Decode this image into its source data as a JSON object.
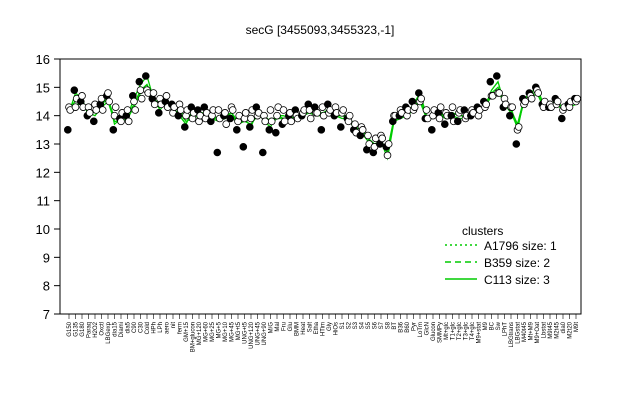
{
  "chart_data": {
    "type": "line",
    "title": "secG [3455093,3455323,-1]",
    "xlabel": "",
    "ylabel": "",
    "ylim": [
      7,
      16
    ],
    "yticks": [
      7,
      8,
      9,
      10,
      11,
      12,
      13,
      14,
      15,
      16
    ],
    "categories": [
      "G150",
      "G135",
      "G180",
      "Paraq",
      "H2O2",
      "Oxctl",
      "LBGexp",
      "dia15",
      "Diami",
      "dia5",
      "C90",
      "C30",
      "Cold",
      "HPh",
      "LPh",
      "aero",
      "nit",
      "ferm",
      "GM+15",
      "BM+glucon",
      "MG+120",
      "MG+60",
      "MG+25",
      "MG+5",
      "MG+10",
      "MG+45",
      "MG+t5",
      "UNG+t5",
      "UNG+120",
      "UNG+45",
      "UNG+90",
      "M/G",
      "Mal",
      "Fru",
      "Glu",
      "BMM",
      "Heat",
      "Salt",
      "Etha",
      "HTim",
      "Gly",
      "HiOs",
      "S1",
      "S2",
      "S3",
      "S4",
      "S5",
      "S6",
      "S7",
      "S8",
      "BT",
      "B36",
      "B60",
      "Pyr",
      "LoTm",
      "GlcN",
      "Glucon",
      "SMMPy",
      "Mt+glc",
      "T1+glc",
      "T2+glc",
      "T3+glc",
      "T4+glc",
      "M9+stat",
      "M9",
      "BC",
      "Sw",
      "LPhT",
      "LBGtrans",
      "LBGstat",
      "M40t45",
      "Mt+M9",
      "M9+Oat",
      "Lbstat",
      "M9t45",
      "M2t45",
      "dia0",
      "M2t20",
      "M9t"
    ],
    "series": [
      {
        "values": [
          14.3,
          14.5,
          14.5,
          14.2,
          14.1,
          14.4,
          14.6,
          13.9,
          13.9,
          14.0,
          14.4,
          14.9,
          15.1,
          14.6,
          14.4,
          14.5,
          14.3,
          14.2,
          13.9,
          14.0,
          14.1,
          14.1,
          14.0,
          13.9,
          14.0,
          14.1,
          13.8,
          13.9,
          13.8,
          14.1,
          14.0,
          13.8,
          14.0,
          14.0,
          13.9,
          14.0,
          14.1,
          14.2,
          14.1,
          14.1,
          14.2,
          14.1,
          14.0,
          14.0,
          13.6,
          13.5,
          13.2,
          13.0,
          13.1,
          12.8,
          13.9,
          14.0,
          14.1,
          14.3,
          14.6,
          14.0,
          14.0,
          14.1,
          14.0,
          14.1,
          14.0,
          14.0,
          14.1,
          14.2,
          14.4,
          14.8,
          15.0,
          14.5,
          14.2,
          13.7,
          14.6,
          14.7,
          14.9,
          14.4,
          14.4,
          14.5,
          14.3,
          14.4,
          14.5
        ]
      },
      {
        "values": [
          14.2,
          14.4,
          14.4,
          14.1,
          14.0,
          14.3,
          14.5,
          13.8,
          13.8,
          13.9,
          14.3,
          14.8,
          15.0,
          14.5,
          14.3,
          14.4,
          14.2,
          14.1,
          13.8,
          13.9,
          14.0,
          14.0,
          13.9,
          13.8,
          13.9,
          14.0,
          13.7,
          13.8,
          13.7,
          14.0,
          13.9,
          13.7,
          13.9,
          13.9,
          13.8,
          13.9,
          14.0,
          14.1,
          14.0,
          14.0,
          14.1,
          14.0,
          13.9,
          13.9,
          13.5,
          13.4,
          13.1,
          12.9,
          13.0,
          12.7,
          13.8,
          13.9,
          14.0,
          14.2,
          14.5,
          13.9,
          13.9,
          14.0,
          13.9,
          14.0,
          13.9,
          13.9,
          14.0,
          14.1,
          14.3,
          14.7,
          14.9,
          14.4,
          14.1,
          13.6,
          14.5,
          14.6,
          14.8,
          14.3,
          14.3,
          14.4,
          14.2,
          14.3,
          14.4
        ]
      },
      {
        "values": [
          14.1,
          14.8,
          14.6,
          14.0,
          14.2,
          14.4,
          14.7,
          13.7,
          13.9,
          14.0,
          14.6,
          15.1,
          15.4,
          14.6,
          14.2,
          14.5,
          14.3,
          14.0,
          13.7,
          14.2,
          14.0,
          14.1,
          13.8,
          14.0,
          13.9,
          14.1,
          13.7,
          13.9,
          13.6,
          14.2,
          13.8,
          13.6,
          14.0,
          13.9,
          13.8,
          14.1,
          14.0,
          14.2,
          14.2,
          14.0,
          14.3,
          14.0,
          14.0,
          13.9,
          13.5,
          13.6,
          13.2,
          12.8,
          13.1,
          12.5,
          13.8,
          14.0,
          14.1,
          14.4,
          14.8,
          14.0,
          13.9,
          14.1,
          13.9,
          14.1,
          14.0,
          14.0,
          14.0,
          14.1,
          14.3,
          14.9,
          15.2,
          14.4,
          14.3,
          13.5,
          14.6,
          14.8,
          15.0,
          14.4,
          14.3,
          14.6,
          14.2,
          14.4,
          14.5
        ]
      }
    ],
    "points": [
      [
        13.5,
        14.3,
        14.2
      ],
      [
        14.9,
        14.3,
        14.6
      ],
      [
        14.5,
        14.7,
        14.3
      ],
      [
        14.0,
        14.3,
        14.1
      ],
      [
        13.8,
        14.4,
        14.2
      ],
      [
        14.4,
        14.6,
        14.2
      ],
      [
        14.7,
        14.8,
        14.5
      ],
      [
        13.5,
        14.0,
        14.3
      ],
      [
        13.9,
        13.8,
        14.1
      ],
      [
        14.0,
        14.2,
        13.8
      ],
      [
        14.7,
        14.5,
        14.2
      ],
      [
        15.2,
        14.9,
        14.6
      ],
      [
        15.4,
        14.9,
        14.8
      ],
      [
        14.6,
        14.8,
        14.4
      ],
      [
        14.1,
        14.6,
        14.4
      ],
      [
        14.5,
        14.7,
        14.3
      ],
      [
        14.4,
        14.1,
        14.3
      ],
      [
        14.0,
        14.4,
        14.2
      ],
      [
        13.6,
        14.0,
        14.2
      ],
      [
        14.3,
        13.9,
        14.1
      ],
      [
        14.2,
        13.8,
        14.0
      ],
      [
        14.3,
        13.9,
        14.1
      ],
      [
        13.8,
        14.0,
        14.2
      ],
      [
        12.7,
        14.2,
        13.9
      ],
      [
        14.0,
        14.1,
        13.7
      ],
      [
        13.9,
        14.3,
        14.2
      ],
      [
        13.5,
        13.8,
        14.0
      ],
      [
        12.9,
        13.9,
        14.1
      ],
      [
        13.6,
        13.9,
        14.2
      ],
      [
        14.3,
        14.0,
        14.1
      ],
      [
        12.7,
        14.0,
        13.8
      ],
      [
        13.5,
        14.2,
        13.8
      ],
      [
        13.4,
        14.0,
        14.3
      ],
      [
        13.7,
        14.2,
        13.8
      ],
      [
        14.0,
        14.1,
        13.8
      ],
      [
        14.2,
        14.0,
        13.9
      ],
      [
        14.0,
        14.1,
        14.2
      ],
      [
        14.4,
        14.2,
        13.9
      ],
      [
        14.3,
        14.1,
        14.1
      ],
      [
        13.5,
        14.3,
        14.0
      ],
      [
        14.4,
        14.1,
        14.2
      ],
      [
        14.0,
        14.3,
        14.1
      ],
      [
        13.6,
        14.1,
        14.2
      ],
      [
        13.9,
        13.8,
        14.0
      ],
      [
        13.5,
        13.7,
        13.4
      ],
      [
        13.3,
        13.6,
        13.5
      ],
      [
        12.8,
        13.3,
        13.0
      ],
      [
        12.7,
        12.9,
        13.2
      ],
      [
        13.0,
        13.3,
        13.2
      ],
      [
        12.9,
        12.6,
        13.0
      ],
      [
        13.8,
        14.0,
        14.0
      ],
      [
        14.0,
        14.2,
        14.1
      ],
      [
        14.3,
        14.0,
        14.2
      ],
      [
        14.5,
        14.2,
        14.3
      ],
      [
        14.8,
        14.5,
        14.6
      ],
      [
        13.9,
        14.2,
        13.9
      ],
      [
        13.5,
        14.0,
        14.2
      ],
      [
        14.1,
        13.9,
        14.3
      ],
      [
        13.7,
        14.1,
        14.0
      ],
      [
        14.0,
        14.3,
        13.8
      ],
      [
        13.8,
        14.1,
        14.2
      ],
      [
        14.2,
        13.9,
        14.0
      ],
      [
        14.0,
        14.2,
        14.1
      ],
      [
        14.3,
        14.0,
        14.2
      ],
      [
        14.5,
        14.3,
        14.4
      ],
      [
        15.2,
        14.7,
        14.7
      ],
      [
        15.4,
        14.8,
        14.8
      ],
      [
        14.3,
        14.6,
        14.4
      ],
      [
        14.0,
        14.3,
        14.3
      ],
      [
        13.0,
        13.5,
        13.6
      ],
      [
        14.6,
        14.4,
        14.5
      ],
      [
        14.8,
        14.7,
        14.6
      ],
      [
        15.0,
        14.9,
        14.8
      ],
      [
        14.4,
        14.3,
        14.5
      ],
      [
        14.3,
        14.4,
        14.3
      ],
      [
        14.6,
        14.4,
        14.5
      ],
      [
        13.9,
        14.2,
        14.3
      ],
      [
        14.4,
        14.3,
        14.5
      ],
      [
        14.6,
        14.5,
        14.6
      ]
    ],
    "legend": {
      "title": "clusters",
      "entries": [
        {
          "label": "A1796 size: 1",
          "style": "dotted"
        },
        {
          "label": "B359 size: 2",
          "style": "dashed"
        },
        {
          "label": "C113 size: 3",
          "style": "solid"
        }
      ],
      "color": "#00cc00",
      "placement": "right"
    },
    "line_color": "#00cc00",
    "grid": false
  }
}
